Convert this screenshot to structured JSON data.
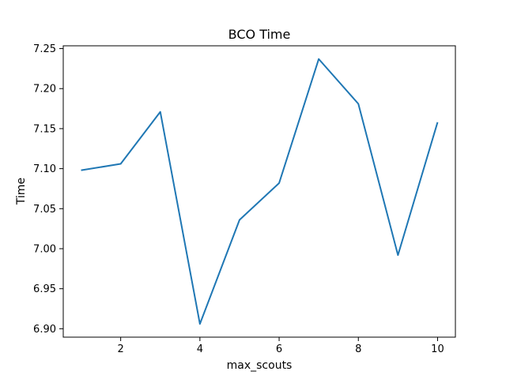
{
  "chart_data": {
    "type": "line",
    "title": "BCO Time",
    "xlabel": "max_scouts",
    "ylabel": "Time",
    "x": [
      1,
      2,
      3,
      4,
      5,
      6,
      7,
      8,
      9,
      10
    ],
    "series": [
      {
        "values": [
          7.098,
          7.106,
          7.171,
          6.906,
          7.036,
          7.082,
          7.237,
          7.181,
          6.992,
          7.158
        ],
        "color": "#1f77b4"
      }
    ],
    "xlim": [
      0.55,
      10.45
    ],
    "ylim": [
      6.8895,
      7.2535
    ],
    "xticks": [
      2,
      4,
      6,
      8,
      10
    ],
    "xtick_labels": [
      "2",
      "4",
      "6",
      "8",
      "10"
    ],
    "yticks": [
      6.9,
      6.95,
      7.0,
      7.05,
      7.1,
      7.15,
      7.2,
      7.25
    ],
    "ytick_labels": [
      "6.90",
      "6.95",
      "7.00",
      "7.05",
      "7.10",
      "7.15",
      "7.20",
      "7.25"
    ],
    "grid": false,
    "legend": "none"
  }
}
